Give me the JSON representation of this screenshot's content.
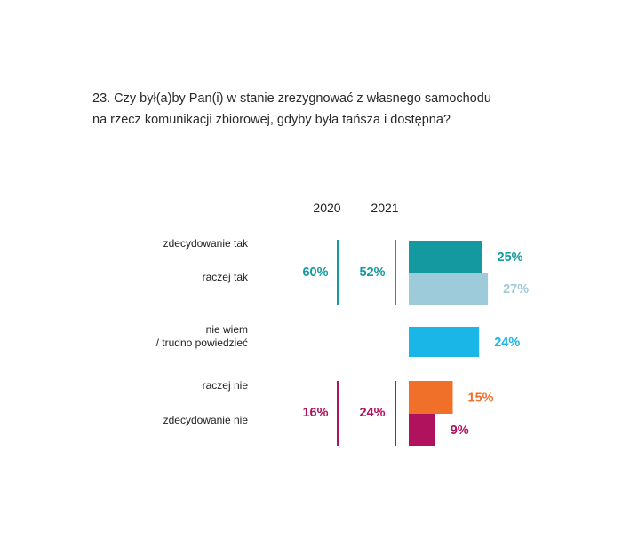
{
  "title": {
    "line1": "23. Czy był(a)by Pan(i) w stanie zrezygnować z własnego samochodu",
    "line2": "na rzecz komunikacji zbiorowej, gdyby była tańsza i dostępna?"
  },
  "columns": {
    "year_a": "2020",
    "year_b": "2021"
  },
  "categories": {
    "c0": "zdecydowanie tak",
    "c1": "raczej tak",
    "c2a": "nie wiem",
    "c2b": "/ trudno powiedzieć",
    "c3": "raczej nie",
    "c4": "zdecydowanie nie"
  },
  "groups": {
    "yes": {
      "v2020": "60%",
      "v2021": "52%",
      "color": "#13999f"
    },
    "no": {
      "v2020": "16%",
      "v2021": "24%",
      "color": "#b0125e"
    }
  },
  "chart_data": {
    "type": "bar",
    "orientation": "horizontal",
    "title": "23. Czy był(a)by Pan(i) w stanie zrezygnować z własnego samochodu na rzecz komunikacji zbiorowej, gdyby była tańsza i dostępna?",
    "categories": [
      "zdecydowanie tak",
      "raczej tak",
      "nie wiem / trudno powiedzieć",
      "raczej nie",
      "zdecydowanie nie"
    ],
    "values": [
      25,
      27,
      24,
      15,
      9
    ],
    "value_labels": [
      "25%",
      "27%",
      "24%",
      "15%",
      "9%"
    ],
    "colors": [
      "#13999f",
      "#9ecbd9",
      "#1ab6e8",
      "#f07029",
      "#b0125e"
    ],
    "unit": "%",
    "grid": false,
    "legend": "none"
  }
}
